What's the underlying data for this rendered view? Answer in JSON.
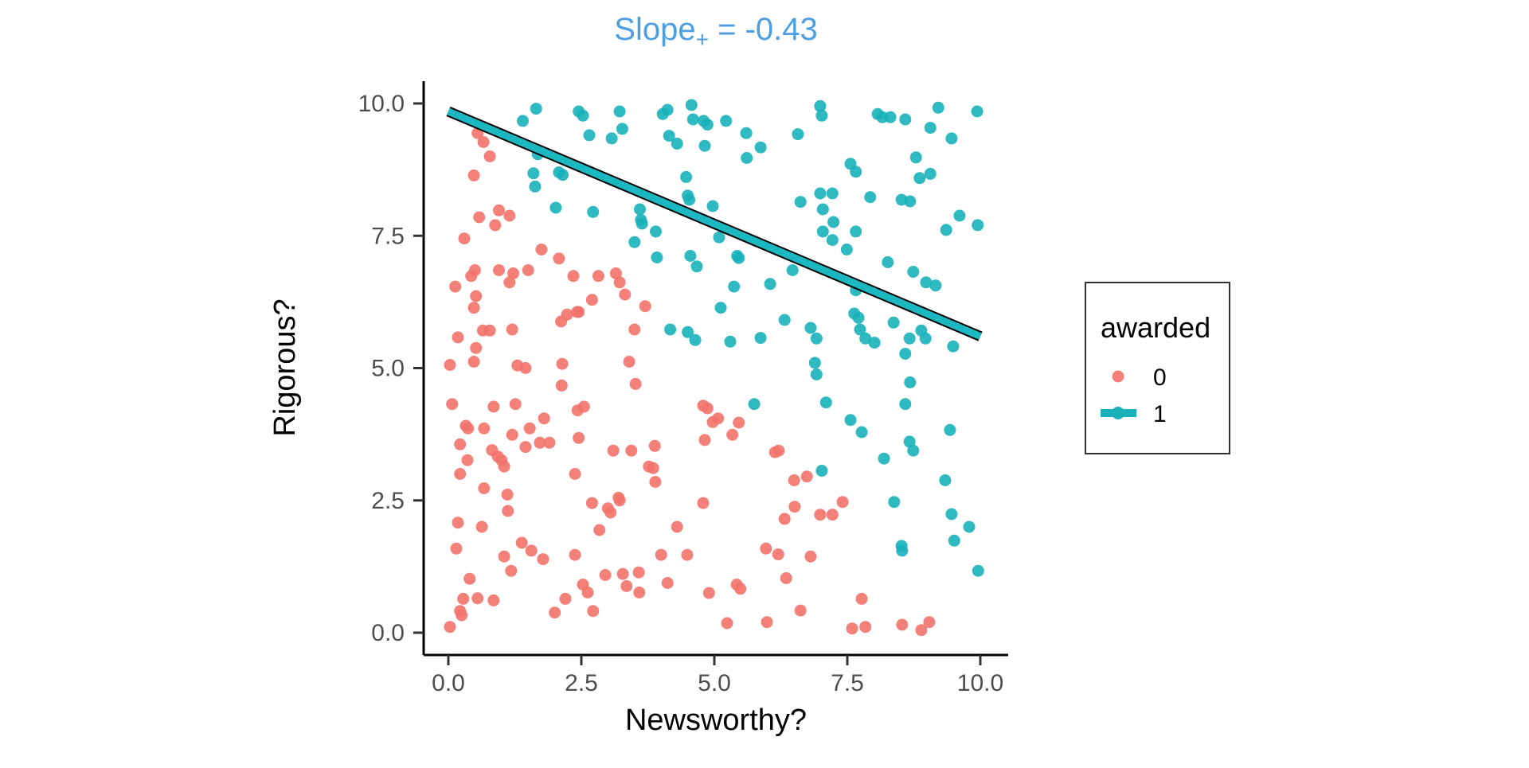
{
  "figure": {
    "title": {
      "prefix": "Slope",
      "subscript": "+",
      "suffix": " = -0.43",
      "color": "#4d9fe4"
    },
    "x_axis": {
      "label": "Newsworthy?",
      "tick_labels": [
        "0.0",
        "2.5",
        "5.0",
        "7.5",
        "10.0"
      ],
      "tick_values": [
        0,
        2.5,
        5,
        7.5,
        10
      ]
    },
    "y_axis": {
      "label": "Rigorous?",
      "tick_labels": [
        "0.0",
        "2.5",
        "5.0",
        "7.5",
        "10.0"
      ],
      "tick_values": [
        0,
        2.5,
        5,
        7.5,
        10
      ]
    },
    "legend": {
      "title": "awarded",
      "items": [
        {
          "label": "0",
          "color": "#f3726b",
          "key": "point"
        },
        {
          "label": "1",
          "color": "#18b1b9",
          "key": "line-point"
        }
      ]
    }
  },
  "chart_data": {
    "type": "scatter",
    "title": "Slope+ = -0.43",
    "xlabel": "Newsworthy?",
    "ylabel": "Rigorous?",
    "xlim": [
      0,
      10
    ],
    "ylim": [
      0,
      10
    ],
    "grid": false,
    "legend_position": "right",
    "legend_title": "awarded",
    "point_opacity": 0.9,
    "series": [
      {
        "name": "0",
        "color": "#f3726b",
        "points": [
          [
            0.55,
            9.44
          ],
          [
            0.66,
            9.27
          ],
          [
            0.78,
            9.0
          ],
          [
            0.48,
            8.64
          ],
          [
            0.95,
            7.98
          ],
          [
            1.15,
            7.88
          ],
          [
            0.58,
            7.85
          ],
          [
            0.88,
            7.7
          ],
          [
            0.3,
            7.45
          ],
          [
            1.75,
            7.24
          ],
          [
            2.08,
            7.07
          ],
          [
            0.13,
            6.54
          ],
          [
            0.52,
            6.36
          ],
          [
            0.48,
            6.14
          ],
          [
            0.43,
            6.74
          ],
          [
            0.5,
            6.85
          ],
          [
            0.95,
            6.85
          ],
          [
            1.22,
            6.79
          ],
          [
            1.5,
            6.85
          ],
          [
            1.15,
            6.62
          ],
          [
            2.35,
            6.74
          ],
          [
            2.45,
            6.06
          ],
          [
            2.7,
            6.29
          ],
          [
            2.12,
            5.88
          ],
          [
            2.23,
            6.01
          ],
          [
            2.42,
            6.06
          ],
          [
            2.82,
            6.74
          ],
          [
            3.15,
            6.79
          ],
          [
            3.22,
            6.62
          ],
          [
            3.32,
            6.39
          ],
          [
            3.7,
            6.17
          ],
          [
            3.5,
            5.73
          ],
          [
            0.18,
            5.58
          ],
          [
            0.65,
            5.71
          ],
          [
            0.78,
            5.71
          ],
          [
            1.2,
            5.73
          ],
          [
            0.52,
            5.38
          ],
          [
            0.48,
            5.12
          ],
          [
            0.03,
            5.06
          ],
          [
            1.3,
            5.05
          ],
          [
            1.45,
            5.0
          ],
          [
            2.14,
            5.08
          ],
          [
            3.4,
            5.12
          ],
          [
            2.13,
            4.67
          ],
          [
            3.52,
            4.7
          ],
          [
            0.07,
            4.32
          ],
          [
            0.85,
            4.27
          ],
          [
            1.26,
            4.32
          ],
          [
            1.8,
            4.05
          ],
          [
            1.53,
            3.86
          ],
          [
            2.43,
            4.2
          ],
          [
            2.55,
            4.27
          ],
          [
            0.33,
            3.91
          ],
          [
            0.37,
            3.86
          ],
          [
            0.67,
            3.86
          ],
          [
            1.2,
            3.74
          ],
          [
            1.45,
            3.51
          ],
          [
            1.72,
            3.59
          ],
          [
            1.9,
            3.59
          ],
          [
            0.22,
            3.56
          ],
          [
            0.82,
            3.45
          ],
          [
            0.93,
            3.33
          ],
          [
            1.0,
            3.26
          ],
          [
            1.05,
            3.14
          ],
          [
            0.36,
            3.26
          ],
          [
            0.22,
            3.0
          ],
          [
            2.45,
            3.68
          ],
          [
            2.38,
            3.0
          ],
          [
            3.1,
            3.44
          ],
          [
            3.44,
            3.44
          ],
          [
            3.88,
            3.53
          ],
          [
            3.77,
            3.14
          ],
          [
            3.85,
            3.11
          ],
          [
            3.89,
            2.85
          ],
          [
            0.67,
            2.73
          ],
          [
            1.11,
            2.61
          ],
          [
            1.12,
            2.3
          ],
          [
            2.7,
            2.45
          ],
          [
            3.0,
            2.35
          ],
          [
            3.05,
            2.27
          ],
          [
            3.2,
            2.55
          ],
          [
            3.22,
            2.5
          ],
          [
            0.18,
            2.08
          ],
          [
            0.63,
            2.0
          ],
          [
            0.15,
            1.59
          ],
          [
            0.4,
            1.02
          ],
          [
            1.05,
            1.44
          ],
          [
            1.18,
            1.17
          ],
          [
            1.38,
            1.7
          ],
          [
            1.56,
            1.55
          ],
          [
            1.78,
            1.39
          ],
          [
            2.38,
            1.47
          ],
          [
            2.53,
            0.91
          ],
          [
            2.62,
            0.76
          ],
          [
            2.95,
            1.09
          ],
          [
            3.28,
            1.11
          ],
          [
            3.35,
            0.88
          ],
          [
            3.58,
            1.14
          ],
          [
            3.59,
            0.76
          ],
          [
            4.12,
            0.94
          ],
          [
            4.9,
            0.75
          ],
          [
            0.28,
            0.64
          ],
          [
            0.22,
            0.41
          ],
          [
            0.25,
            0.33
          ],
          [
            0.55,
            0.65
          ],
          [
            0.85,
            0.61
          ],
          [
            0.03,
            0.11
          ],
          [
            2.0,
            0.38
          ],
          [
            2.2,
            0.64
          ],
          [
            2.72,
            0.41
          ],
          [
            4.3,
            2.0
          ],
          [
            4.0,
            1.47
          ],
          [
            4.49,
            1.47
          ],
          [
            4.79,
            2.45
          ],
          [
            2.84,
            1.94
          ],
          [
            4.79,
            4.29
          ],
          [
            4.87,
            4.24
          ],
          [
            4.97,
            3.98
          ],
          [
            4.82,
            3.64
          ],
          [
            5.07,
            4.05
          ],
          [
            5.46,
            3.97
          ],
          [
            5.34,
            3.74
          ],
          [
            6.14,
            3.41
          ],
          [
            6.21,
            3.44
          ],
          [
            6.5,
            2.88
          ],
          [
            6.74,
            2.95
          ],
          [
            6.51,
            2.38
          ],
          [
            6.32,
            2.15
          ],
          [
            6.99,
            2.23
          ],
          [
            7.22,
            2.23
          ],
          [
            7.41,
            2.47
          ],
          [
            5.97,
            1.59
          ],
          [
            6.2,
            1.48
          ],
          [
            6.81,
            1.44
          ],
          [
            6.35,
            1.03
          ],
          [
            5.42,
            0.91
          ],
          [
            5.49,
            0.83
          ],
          [
            6.62,
            0.42
          ],
          [
            5.24,
            0.18
          ],
          [
            5.99,
            0.2
          ],
          [
            7.59,
            0.08
          ],
          [
            7.84,
            0.11
          ],
          [
            7.77,
            0.64
          ],
          [
            8.53,
            0.15
          ],
          [
            8.89,
            0.05
          ],
          [
            9.04,
            0.2
          ]
        ]
      },
      {
        "name": "1",
        "color": "#18b1b9",
        "points": [
          [
            1.65,
            9.9
          ],
          [
            2.45,
            9.85
          ],
          [
            2.53,
            9.77
          ],
          [
            3.22,
            9.85
          ],
          [
            4.03,
            9.8
          ],
          [
            4.12,
            9.88
          ],
          [
            4.57,
            9.97
          ],
          [
            4.6,
            9.7
          ],
          [
            4.8,
            9.67
          ],
          [
            4.87,
            9.6
          ],
          [
            3.27,
            9.52
          ],
          [
            2.65,
            9.4
          ],
          [
            3.07,
            9.34
          ],
          [
            4.15,
            9.39
          ],
          [
            4.3,
            9.24
          ],
          [
            4.82,
            9.2
          ],
          [
            1.4,
            9.67
          ],
          [
            1.68,
            9.04
          ],
          [
            1.6,
            8.68
          ],
          [
            1.63,
            8.43
          ],
          [
            2.08,
            8.7
          ],
          [
            2.15,
            8.65
          ],
          [
            4.47,
            8.61
          ],
          [
            4.5,
            8.26
          ],
          [
            4.53,
            8.18
          ],
          [
            2.02,
            8.03
          ],
          [
            2.72,
            7.95
          ],
          [
            3.6,
            8.0
          ],
          [
            3.62,
            7.8
          ],
          [
            3.64,
            7.73
          ],
          [
            3.9,
            7.58
          ],
          [
            3.5,
            7.38
          ],
          [
            3.92,
            7.09
          ],
          [
            4.55,
            7.12
          ],
          [
            4.67,
            6.92
          ],
          [
            4.17,
            5.73
          ],
          [
            4.5,
            5.68
          ],
          [
            4.64,
            5.53
          ],
          [
            4.97,
            8.06
          ],
          [
            5.22,
            9.67
          ],
          [
            5.6,
            9.44
          ],
          [
            5.87,
            9.17
          ],
          [
            5.61,
            8.97
          ],
          [
            6.57,
            9.42
          ],
          [
            6.99,
            9.95
          ],
          [
            7.02,
            9.77
          ],
          [
            8.07,
            9.8
          ],
          [
            8.16,
            9.74
          ],
          [
            8.31,
            9.74
          ],
          [
            8.59,
            9.7
          ],
          [
            9.21,
            9.92
          ],
          [
            9.94,
            9.85
          ],
          [
            9.06,
            9.54
          ],
          [
            9.46,
            9.34
          ],
          [
            8.79,
            8.98
          ],
          [
            7.56,
            8.86
          ],
          [
            7.66,
            8.71
          ],
          [
            8.86,
            8.59
          ],
          [
            9.06,
            8.67
          ],
          [
            6.99,
            8.3
          ],
          [
            7.22,
            8.3
          ],
          [
            6.62,
            8.14
          ],
          [
            7.93,
            8.23
          ],
          [
            8.52,
            8.18
          ],
          [
            8.68,
            8.15
          ],
          [
            7.04,
            8.0
          ],
          [
            9.61,
            7.88
          ],
          [
            7.24,
            7.76
          ],
          [
            7.04,
            7.58
          ],
          [
            7.22,
            7.42
          ],
          [
            7.66,
            7.58
          ],
          [
            9.36,
            7.61
          ],
          [
            9.95,
            7.7
          ],
          [
            7.49,
            7.24
          ],
          [
            5.46,
            7.08
          ],
          [
            5.43,
            7.12
          ],
          [
            5.09,
            7.47
          ],
          [
            6.47,
            6.85
          ],
          [
            8.26,
            7.0
          ],
          [
            8.74,
            6.82
          ],
          [
            8.98,
            6.62
          ],
          [
            9.16,
            6.56
          ],
          [
            6.05,
            6.59
          ],
          [
            5.37,
            6.54
          ],
          [
            7.66,
            6.47
          ],
          [
            5.12,
            6.14
          ],
          [
            6.32,
            5.91
          ],
          [
            6.81,
            5.76
          ],
          [
            6.92,
            5.56
          ],
          [
            7.63,
            6.03
          ],
          [
            7.71,
            5.95
          ],
          [
            7.74,
            5.73
          ],
          [
            7.84,
            5.56
          ],
          [
            8.01,
            5.48
          ],
          [
            8.37,
            5.86
          ],
          [
            8.89,
            5.71
          ],
          [
            8.97,
            5.56
          ],
          [
            8.67,
            5.56
          ],
          [
            5.3,
            5.5
          ],
          [
            5.87,
            5.57
          ],
          [
            9.49,
            5.41
          ],
          [
            8.59,
            5.27
          ],
          [
            6.89,
            5.1
          ],
          [
            6.92,
            4.88
          ],
          [
            8.68,
            4.73
          ],
          [
            5.75,
            4.32
          ],
          [
            7.1,
            4.35
          ],
          [
            8.59,
            4.32
          ],
          [
            7.56,
            4.02
          ],
          [
            7.77,
            3.79
          ],
          [
            9.43,
            3.83
          ],
          [
            8.67,
            3.61
          ],
          [
            8.74,
            3.44
          ],
          [
            8.19,
            3.29
          ],
          [
            7.02,
            3.06
          ],
          [
            9.34,
            2.88
          ],
          [
            8.38,
            2.47
          ],
          [
            9.46,
            2.24
          ],
          [
            9.79,
            2.0
          ],
          [
            9.51,
            1.74
          ],
          [
            8.52,
            1.64
          ],
          [
            8.53,
            1.55
          ],
          [
            9.96,
            1.17
          ]
        ]
      }
    ],
    "regression_line": {
      "series": "1",
      "slope": -0.43,
      "color": "#1cb8c2",
      "outline_color": "#000000",
      "start": [
        0,
        9.85
      ],
      "end": [
        10,
        5.6
      ]
    }
  }
}
